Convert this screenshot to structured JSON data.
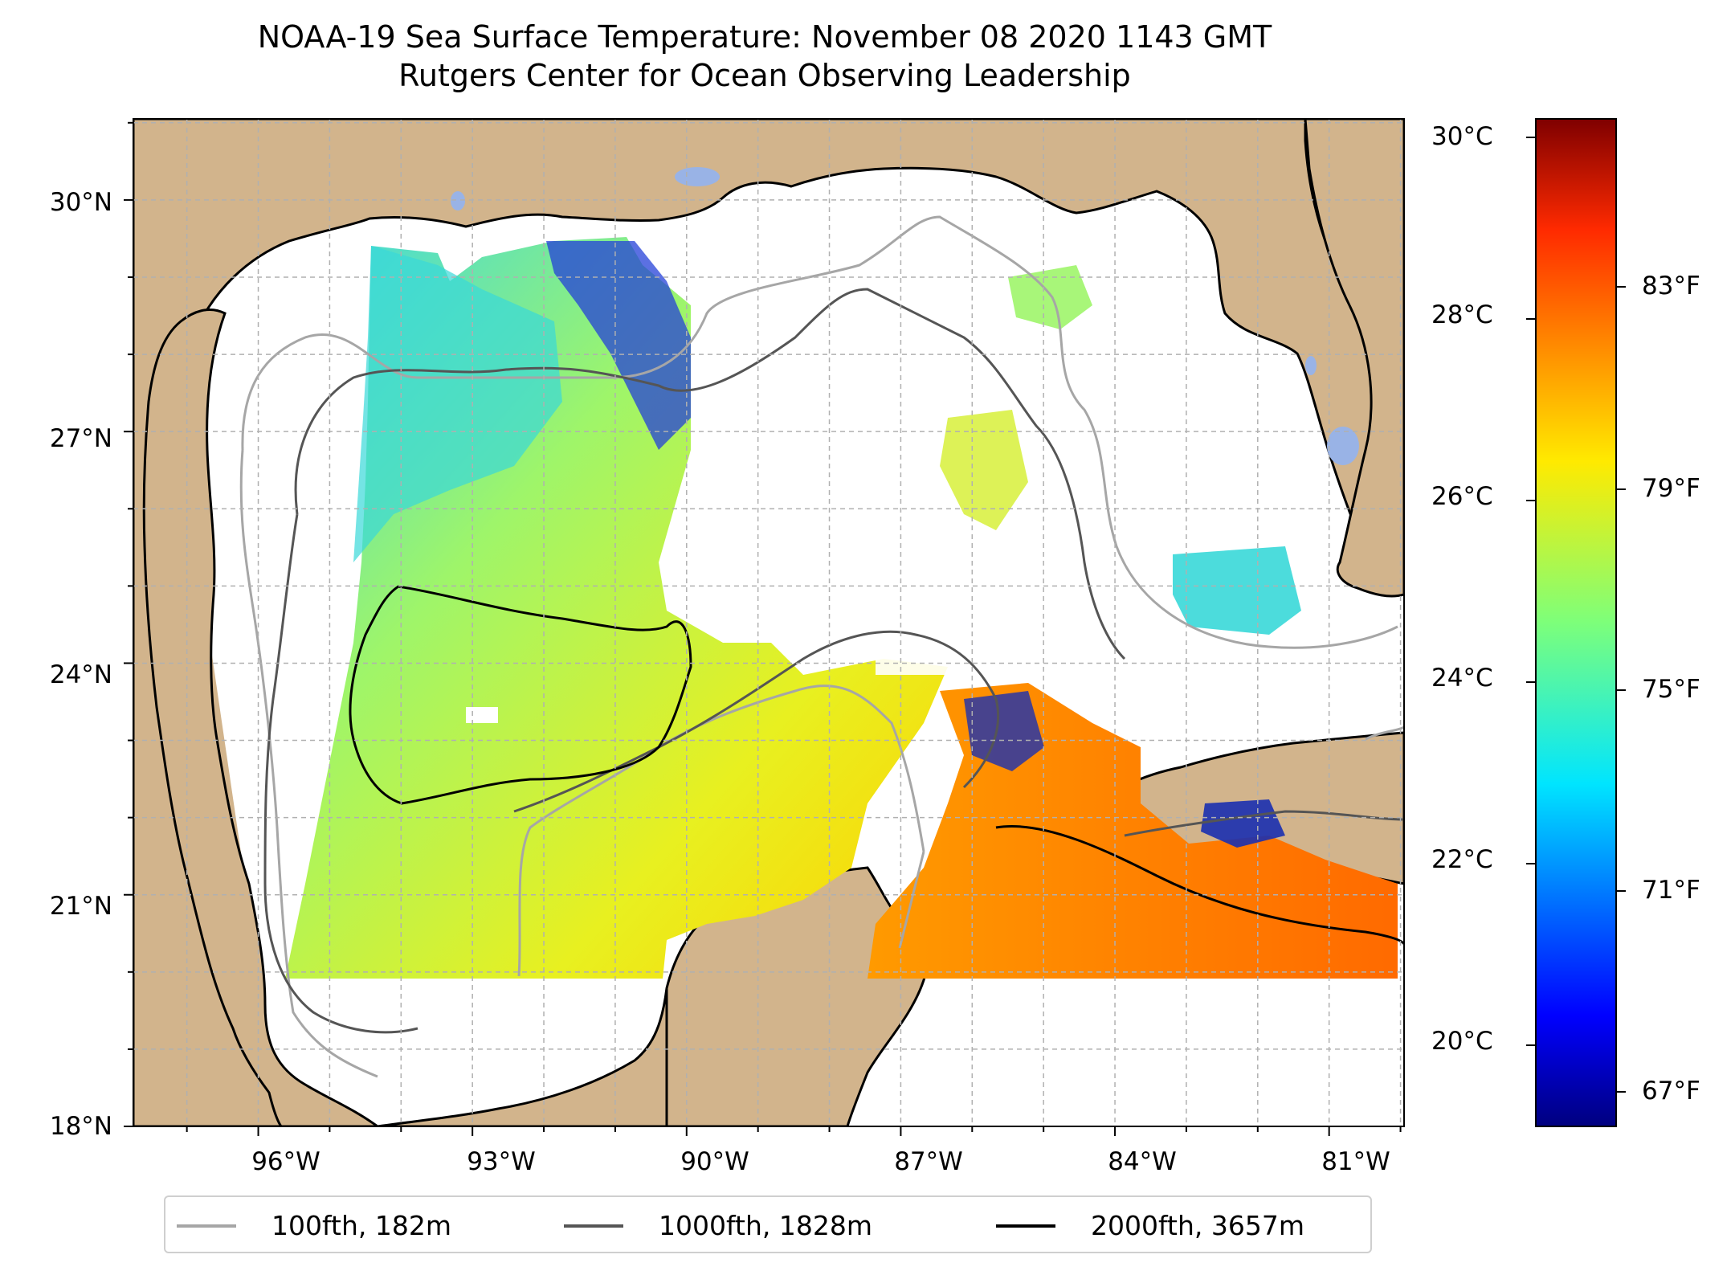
{
  "title": {
    "line1": "NOAA-19 Sea Surface Temperature: November 08 2020 1143 GMT",
    "line2": "Rutgers Center for Ocean Observing Leadership"
  },
  "map": {
    "lat_labels": [
      "30°N",
      "27°N",
      "24°N",
      "21°N",
      "18°N"
    ],
    "lon_labels": [
      "96°W",
      "93°W",
      "90°W",
      "87°W",
      "84°W",
      "81°W"
    ],
    "colors": {
      "land": "#d2b48c",
      "ocean_no_data": "#ffffff",
      "lakes": "#99b3e6",
      "coastline": "#000000",
      "grid": "#b0b0b0"
    }
  },
  "colorbar": {
    "celsius_labels": [
      "30°C",
      "28°C",
      "26°C",
      "24°C",
      "22°C",
      "20°C"
    ],
    "fahrenheit_labels": [
      "83°F",
      "79°F",
      "75°F",
      "71°F",
      "67°F"
    ],
    "colormap": "jet"
  },
  "legend": {
    "items": [
      {
        "label": "100fth, 182m",
        "color": "#a6a6a6"
      },
      {
        "label": "1000fth, 1828m",
        "color": "#555555"
      },
      {
        "label": "2000fth, 3657m",
        "color": "#000000"
      }
    ]
  }
}
